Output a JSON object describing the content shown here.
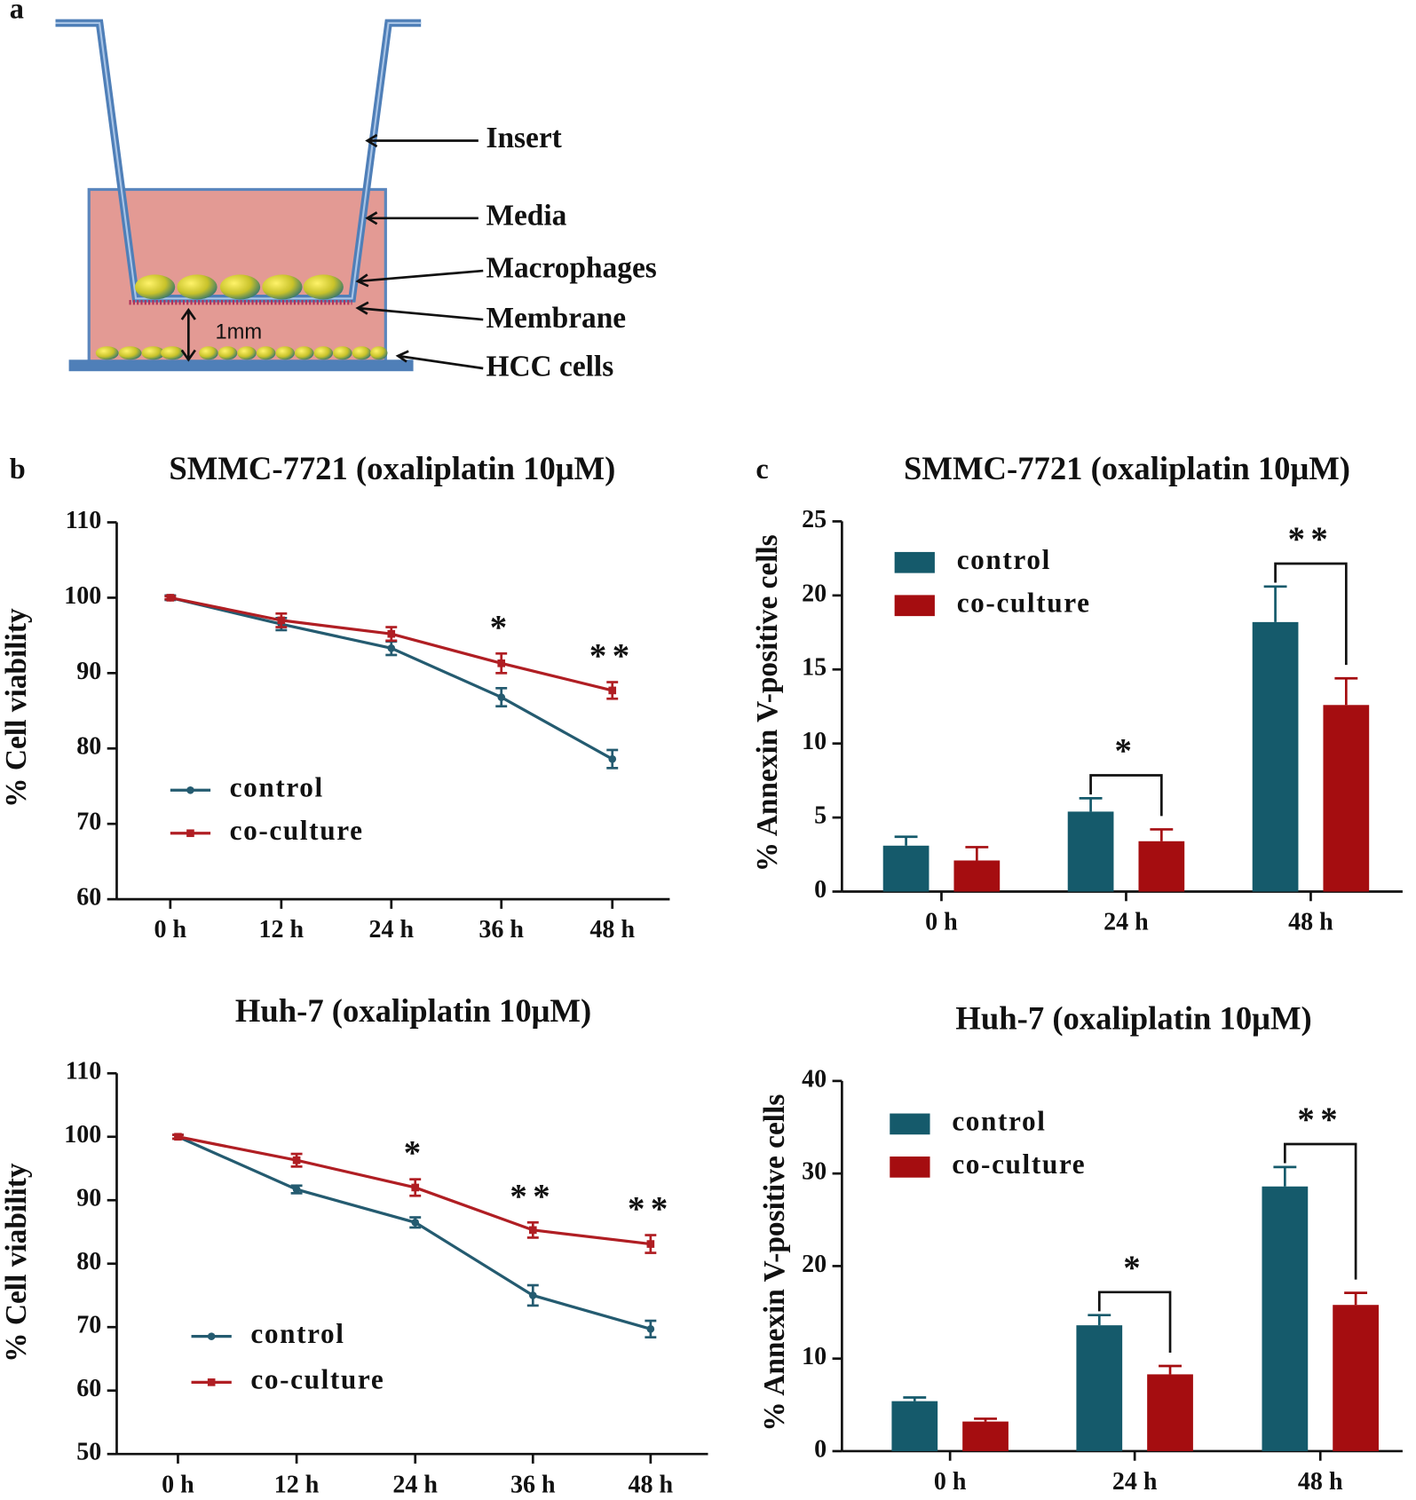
{
  "panel_labels": [
    "a",
    "b",
    "c"
  ],
  "diagram": {
    "labels": [
      "Insert",
      "Media",
      "Macrophages",
      "Membrane",
      "HCC cells"
    ],
    "distance_label": "1mm"
  },
  "chart_data": [
    {
      "type": "line",
      "title": "SMMC-7721 (oxaliplatin 10μM)",
      "y_label": "% Cell viability",
      "categories": [
        "0 h",
        "12 h",
        "24 h",
        "36 h",
        "48 h"
      ],
      "series": [
        {
          "name": "control",
          "color": "#245b70",
          "values": [
            100,
            96.5,
            93.3,
            86.8,
            78.6
          ],
          "errors": [
            0.3,
            0.8,
            0.9,
            1.2,
            1.2
          ]
        },
        {
          "name": "co-culture",
          "color": "#b01e23",
          "values": [
            100,
            97,
            95.2,
            91.3,
            87.7
          ],
          "errors": [
            0.2,
            0.9,
            0.9,
            1.3,
            1.1
          ]
        }
      ],
      "significance": [
        null,
        null,
        null,
        "*",
        "**"
      ],
      "ylim": [
        60,
        110
      ],
      "yticks": [
        60,
        70,
        80,
        90,
        100,
        110
      ]
    },
    {
      "type": "line",
      "title": "Huh-7 (oxaliplatin 10μM)",
      "y_label": "% Cell viability",
      "categories": [
        "0 h",
        "12 h",
        "24 h",
        "36 h",
        "48 h"
      ],
      "series": [
        {
          "name": "control",
          "color": "#245b70",
          "values": [
            100,
            91.7,
            86.5,
            75,
            69.7
          ],
          "errors": [
            0.3,
            0.6,
            0.8,
            1.6,
            1.3
          ]
        },
        {
          "name": "co-culture",
          "color": "#b01e23",
          "values": [
            100,
            96.3,
            92,
            85.3,
            83.1
          ],
          "errors": [
            0.3,
            1,
            1.3,
            1.2,
            1.4
          ]
        }
      ],
      "significance": [
        null,
        null,
        "*",
        "**",
        "**"
      ],
      "ylim": [
        50,
        110
      ],
      "yticks": [
        50,
        60,
        70,
        80,
        90,
        100,
        110
      ]
    },
    {
      "type": "bar",
      "title": "SMMC-7721 (oxaliplatin 10μM)",
      "y_label": "% Annexin V-positive cells",
      "categories": [
        "0 h",
        "24 h",
        "48 h"
      ],
      "series": [
        {
          "name": "control",
          "color": "#155a6b",
          "values": [
            3.1,
            5.4,
            18.2
          ],
          "errors": [
            0.6,
            0.9,
            2.4
          ]
        },
        {
          "name": "co-culture",
          "color": "#a50d10",
          "values": [
            2.1,
            3.4,
            12.6
          ],
          "errors": [
            0.9,
            0.8,
            1.8
          ]
        }
      ],
      "significance": [
        null,
        "*",
        "**"
      ],
      "ylim": [
        0,
        25
      ],
      "yticks": [
        0,
        5,
        10,
        15,
        20,
        25
      ]
    },
    {
      "type": "bar",
      "title": "Huh-7 (oxaliplatin 10μM)",
      "y_label": "% Annexin V-positive cells",
      "categories": [
        "0 h",
        "24 h",
        "48 h"
      ],
      "series": [
        {
          "name": "control",
          "color": "#155a6b",
          "values": [
            5.4,
            13.6,
            28.6
          ],
          "errors": [
            0.4,
            1.1,
            2.1
          ]
        },
        {
          "name": "co-culture",
          "color": "#a50d10",
          "values": [
            3.2,
            8.3,
            15.8
          ],
          "errors": [
            0.3,
            0.9,
            1.3
          ]
        }
      ],
      "significance": [
        null,
        "*",
        "**"
      ],
      "ylim": [
        0,
        40
      ],
      "yticks": [
        0,
        10,
        20,
        30,
        40
      ]
    }
  ]
}
